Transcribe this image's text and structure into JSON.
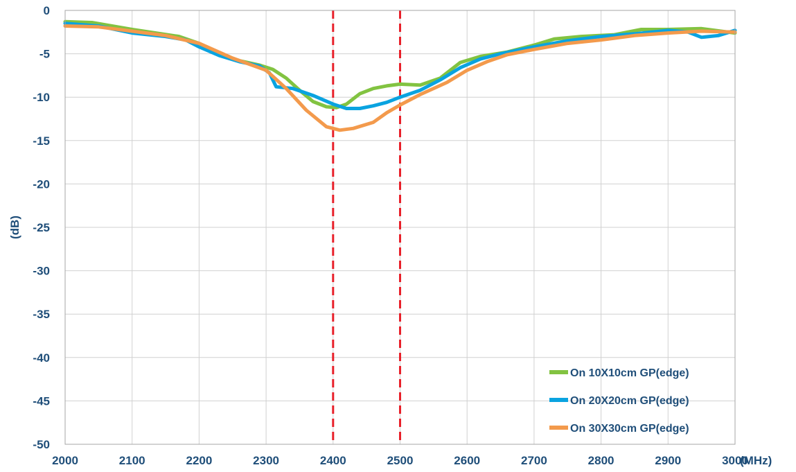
{
  "chart_data": {
    "type": "line",
    "title": "",
    "xlabel": "(MHz)",
    "ylabel": "(dB)",
    "xlim": [
      2000,
      3000
    ],
    "ylim": [
      -50,
      0
    ],
    "x_ticks": [
      "2000",
      "2100",
      "2200",
      "2300",
      "2400",
      "2500",
      "2600",
      "2700",
      "2800",
      "2900",
      "3000"
    ],
    "y_ticks": [
      "0",
      "-5",
      "-10",
      "-15",
      "-20",
      "-25",
      "-30",
      "-35",
      "-40",
      "-45",
      "-50"
    ],
    "grid": true,
    "legend_position": "bottom-right",
    "markers": [
      {
        "x": 2400,
        "color": "#e8202a",
        "style": "dashed"
      },
      {
        "x": 2500,
        "color": "#e8202a",
        "style": "dashed"
      }
    ],
    "series": [
      {
        "name": "On 10X10cm GP(edge)",
        "color": "#82c341",
        "points": [
          [
            2000,
            -1.3
          ],
          [
            2040,
            -1.4
          ],
          [
            2100,
            -2.2
          ],
          [
            2170,
            -3.0
          ],
          [
            2200,
            -3.8
          ],
          [
            2230,
            -5.0
          ],
          [
            2260,
            -5.8
          ],
          [
            2290,
            -6.3
          ],
          [
            2310,
            -6.8
          ],
          [
            2330,
            -7.8
          ],
          [
            2350,
            -9.2
          ],
          [
            2370,
            -10.5
          ],
          [
            2390,
            -11.1
          ],
          [
            2405,
            -11.2
          ],
          [
            2420,
            -10.8
          ],
          [
            2440,
            -9.6
          ],
          [
            2460,
            -9.0
          ],
          [
            2480,
            -8.7
          ],
          [
            2500,
            -8.5
          ],
          [
            2530,
            -8.6
          ],
          [
            2560,
            -7.8
          ],
          [
            2590,
            -6.0
          ],
          [
            2620,
            -5.3
          ],
          [
            2660,
            -4.8
          ],
          [
            2700,
            -4.0
          ],
          [
            2730,
            -3.3
          ],
          [
            2770,
            -3.0
          ],
          [
            2820,
            -2.8
          ],
          [
            2860,
            -2.2
          ],
          [
            2900,
            -2.2
          ],
          [
            2950,
            -2.1
          ],
          [
            3000,
            -2.6
          ]
        ]
      },
      {
        "name": "On 20X20cm GP(edge)",
        "color": "#0aa3e0",
        "points": [
          [
            2000,
            -1.5
          ],
          [
            2050,
            -1.8
          ],
          [
            2100,
            -2.6
          ],
          [
            2150,
            -3.0
          ],
          [
            2180,
            -3.4
          ],
          [
            2200,
            -4.2
          ],
          [
            2230,
            -5.2
          ],
          [
            2260,
            -5.9
          ],
          [
            2290,
            -6.4
          ],
          [
            2305,
            -7.2
          ],
          [
            2315,
            -8.8
          ],
          [
            2340,
            -9.0
          ],
          [
            2370,
            -9.8
          ],
          [
            2400,
            -10.8
          ],
          [
            2420,
            -11.3
          ],
          [
            2440,
            -11.3
          ],
          [
            2460,
            -11.0
          ],
          [
            2480,
            -10.6
          ],
          [
            2500,
            -10.0
          ],
          [
            2530,
            -9.2
          ],
          [
            2560,
            -8.0
          ],
          [
            2590,
            -6.6
          ],
          [
            2620,
            -5.6
          ],
          [
            2650,
            -5.0
          ],
          [
            2700,
            -4.2
          ],
          [
            2750,
            -3.5
          ],
          [
            2800,
            -3.0
          ],
          [
            2850,
            -2.7
          ],
          [
            2900,
            -2.3
          ],
          [
            2930,
            -2.5
          ],
          [
            2950,
            -3.1
          ],
          [
            2975,
            -2.9
          ],
          [
            3000,
            -2.3
          ]
        ]
      },
      {
        "name": "On 30X30cm GP(edge)",
        "color": "#f39a4c",
        "points": [
          [
            2000,
            -1.8
          ],
          [
            2050,
            -1.9
          ],
          [
            2100,
            -2.4
          ],
          [
            2150,
            -2.9
          ],
          [
            2200,
            -3.8
          ],
          [
            2250,
            -5.5
          ],
          [
            2300,
            -6.9
          ],
          [
            2330,
            -9.0
          ],
          [
            2360,
            -11.5
          ],
          [
            2390,
            -13.4
          ],
          [
            2410,
            -13.8
          ],
          [
            2430,
            -13.6
          ],
          [
            2460,
            -12.9
          ],
          [
            2480,
            -11.8
          ],
          [
            2500,
            -10.9
          ],
          [
            2530,
            -9.7
          ],
          [
            2570,
            -8.3
          ],
          [
            2600,
            -6.9
          ],
          [
            2630,
            -5.9
          ],
          [
            2660,
            -5.1
          ],
          [
            2700,
            -4.5
          ],
          [
            2750,
            -3.8
          ],
          [
            2800,
            -3.4
          ],
          [
            2850,
            -2.9
          ],
          [
            2900,
            -2.6
          ],
          [
            2950,
            -2.4
          ],
          [
            3000,
            -2.5
          ]
        ]
      }
    ]
  }
}
